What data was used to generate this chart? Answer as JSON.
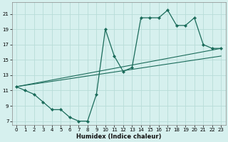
{
  "xlabel": "Humidex (Indice chaleur)",
  "background_color": "#d6f0ee",
  "grid_color": "#b8dcd8",
  "line_color": "#1a6b5a",
  "x_values": [
    0,
    1,
    2,
    3,
    4,
    5,
    6,
    7,
    8,
    9,
    10,
    11,
    12,
    13,
    14,
    15,
    16,
    17,
    18,
    19,
    20,
    21,
    22,
    23
  ],
  "line_main": [
    11.5,
    11.0,
    10.5,
    9.5,
    8.5,
    8.5,
    7.5,
    7.0,
    7.0,
    10.5,
    19.0,
    15.5,
    13.5,
    14.0,
    20.5,
    20.5,
    20.5,
    21.5,
    19.5,
    19.5,
    20.5,
    17.0,
    16.5,
    16.5
  ],
  "trend1_x": [
    0,
    23
  ],
  "trend1_y": [
    11.5,
    16.5
  ],
  "trend2_x": [
    0,
    23
  ],
  "trend2_y": [
    11.5,
    15.5
  ],
  "xlim": [
    -0.5,
    23.5
  ],
  "ylim": [
    6.5,
    22.5
  ],
  "yticks": [
    7,
    9,
    11,
    13,
    15,
    17,
    19,
    21
  ],
  "xticks": [
    0,
    1,
    2,
    3,
    4,
    5,
    6,
    7,
    8,
    9,
    10,
    11,
    12,
    13,
    14,
    15,
    16,
    17,
    18,
    19,
    20,
    21,
    22,
    23
  ],
  "figsize": [
    3.2,
    2.0
  ],
  "dpi": 100
}
